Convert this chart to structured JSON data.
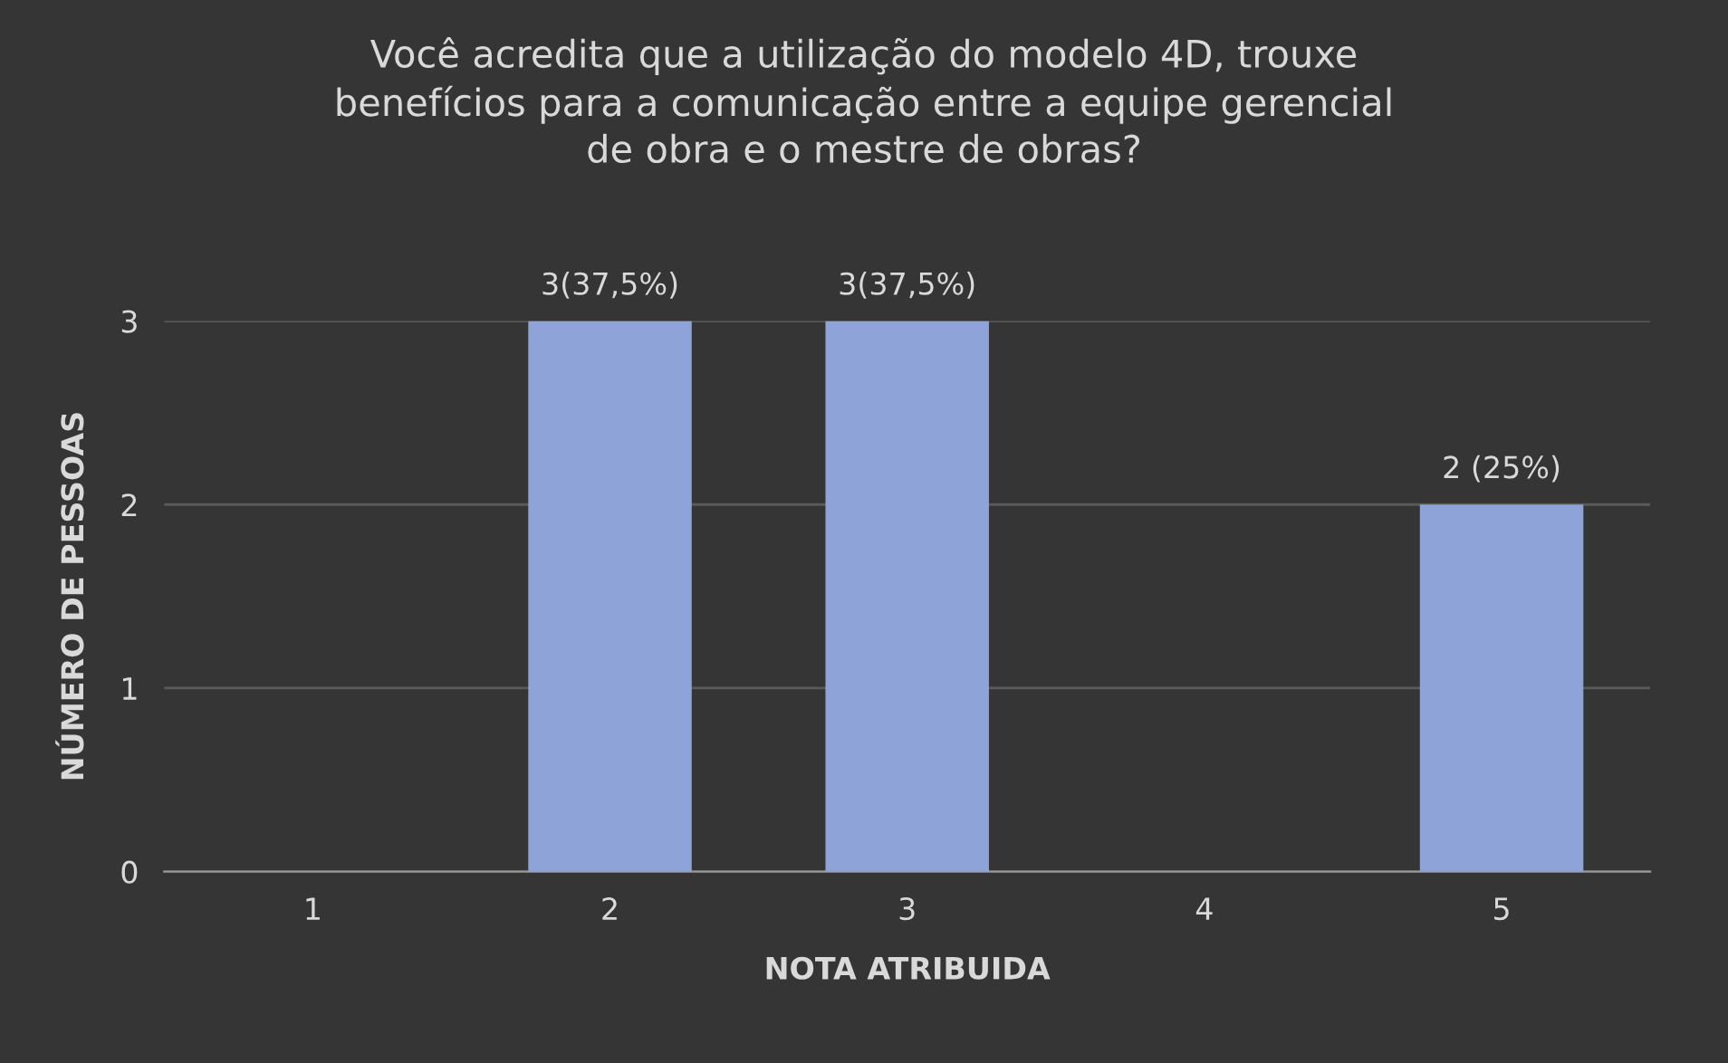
{
  "chart_data": {
    "type": "bar",
    "title": "Você acredita que a utilização do modelo 4D, trouxe\nbenefícios para a comunicação entre a equipe gerencial\nde obra e o mestre de obras?",
    "xlabel": "NOTA ATRIBUIDA",
    "ylabel": "NÚMERO DE PESSOAS",
    "categories": [
      "1",
      "2",
      "3",
      "4",
      "5"
    ],
    "values": [
      0,
      3,
      3,
      0,
      2
    ],
    "value_labels": [
      null,
      "3(37,5%)",
      "3(37,5%)",
      null,
      "2 (25%)"
    ],
    "color": "#8ea3d8",
    "ylim": [
      0,
      3
    ],
    "yticks": [
      0,
      1,
      2,
      3
    ],
    "grid": "y",
    "legend": false
  }
}
